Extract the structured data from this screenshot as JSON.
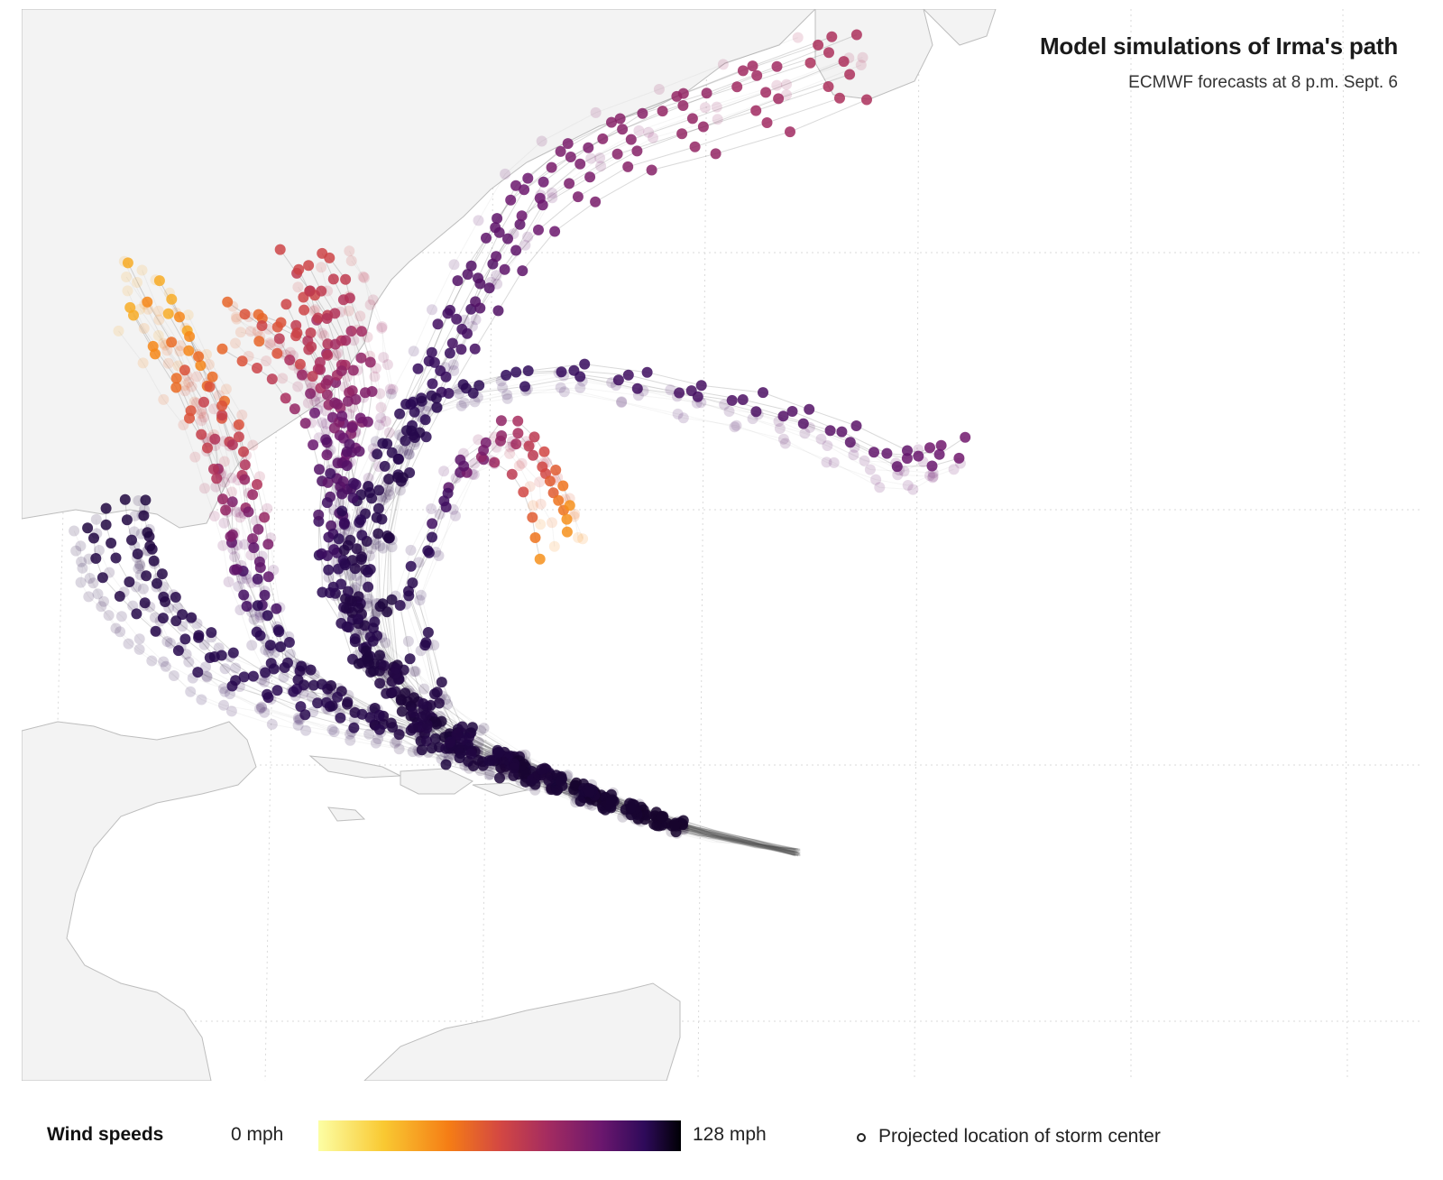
{
  "map": {
    "title": "Model simulations of Irma's path",
    "subtitle": "ECMWF forecasts at 8 p.m. Sept. 6",
    "layers": [
      "land-outline",
      "graticule",
      "forecast-track-lines",
      "projected-storm-center-points"
    ]
  },
  "legend": {
    "title": "Wind speeds",
    "min_label": "0 mph",
    "max_label": "128 mph",
    "min_value": 0,
    "max_value": 128,
    "color_scale": [
      "#fcfea4",
      "#f9c932",
      "#f57d15",
      "#d44842",
      "#a52c60",
      "#6b176e",
      "#2e0a5a",
      "#000004"
    ],
    "marker_label": "Projected location of storm center"
  },
  "colors": {
    "land": "#f3f3f3",
    "coastline": "#bdbdbd",
    "graticule": "#dcdcdc",
    "track_line": "#555555"
  }
}
